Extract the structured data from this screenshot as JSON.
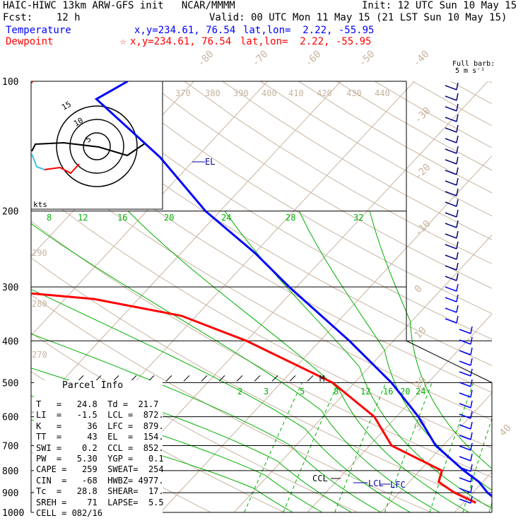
{
  "header": {
    "model": "HAIC-HIWC 13km ARW-GFS init   NCAR/MMMM",
    "init": "Init: 12 UTC Sun 10 May 15",
    "fcst": "Fcst:    12 h",
    "valid": "Valid: 00 UTC Mon 11 May 15 (21 LST Sun 10 May 15)",
    "temperature_label": "Temperature",
    "dewpoint_label": "Dewpoint",
    "temp_xy": "x,y=234.61, 76.54",
    "dew_xy": "x,y=234.61, 76.54",
    "temp_latlon": "lat,lon=  2.22, -55.95",
    "dew_latlon": "lat,lon=  2.22, -55.95",
    "dew_marker": "☆",
    "barb_legend": "Full barb:",
    "barb_units": "5 m s⁻¹"
  },
  "colors": {
    "temperature": "#0000ff",
    "dewpoint": "#ff0000",
    "isotherm": "#c8b4a0",
    "mixing": "#00b000",
    "isobar": "#000000"
  },
  "chart_data": {
    "type": "line",
    "title": "",
    "pressure_levels": [
      100,
      200,
      300,
      400,
      500,
      600,
      700,
      800,
      900,
      1000
    ],
    "isotherm_labels": [
      "-80",
      "-70",
      "-60",
      "-50",
      "-40",
      "-30",
      "-20",
      "-10",
      "0",
      "10",
      "20",
      "30",
      "40"
    ],
    "dry_adiabat_labels": [
      "370",
      "380",
      "390",
      "400",
      "410",
      "420",
      "430",
      "440",
      "290",
      "280",
      "270"
    ],
    "moist_adiabat_labels": [
      "8",
      "12",
      "16",
      "20",
      "24",
      "28",
      "32"
    ],
    "mixing_ratio_labels": [
      "2",
      "3",
      "5",
      "8",
      "12",
      "16",
      "20",
      "24"
    ],
    "series": [
      {
        "name": "Temperature",
        "color": "#0000ff",
        "points": [
          [
            100,
            -79
          ],
          [
            110,
            -81
          ],
          [
            150,
            -65
          ],
          [
            200,
            -52
          ],
          [
            250,
            -40
          ],
          [
            300,
            -31
          ],
          [
            400,
            -16
          ],
          [
            500,
            -5
          ],
          [
            600,
            3
          ],
          [
            700,
            9
          ],
          [
            800,
            16
          ],
          [
            850,
            19.5
          ],
          [
            900,
            22
          ],
          [
            925,
            23.5
          ],
          [
            950,
            24.8
          ]
        ]
      },
      {
        "name": "Dewpoint",
        "color": "#ff0000",
        "points": [
          [
            100,
            -92
          ],
          [
            150,
            -90
          ],
          [
            200,
            -88
          ],
          [
            250,
            -93
          ],
          [
            280,
            -98
          ],
          [
            300,
            -76
          ],
          [
            320,
            -56
          ],
          [
            350,
            -42
          ],
          [
            400,
            -30
          ],
          [
            500,
            -13
          ],
          [
            600,
            -3
          ],
          [
            700,
            3
          ],
          [
            800,
            13
          ],
          [
            850,
            14
          ],
          [
            900,
            17.5
          ],
          [
            950,
            21.7
          ]
        ]
      }
    ],
    "annotations": [
      "EL",
      "M",
      "CCL",
      "LCL",
      "LFC"
    ],
    "hodograph": {
      "rings_kts": [
        5,
        10,
        15
      ],
      "ring_labels": [
        "5",
        "10",
        "15"
      ],
      "axis_label": "kts"
    }
  },
  "parcel": {
    "title": "Parcel Info",
    "rows": [
      "T   =   24.8  Td =  21.7",
      "LI  =   -1.5  LCL =  872.",
      "K   =     36  LFC =  879.",
      "TT  =     43  EL  =  154.",
      "SWI =    0.2  CCL =  852.",
      "PW  =   5.30  YGP =   0.1",
      "CAPE =   259  SWEAT=  254",
      "CIN  =   -68  HWBZ= 4977.",
      "Tc  =   28.8  SHEAR=  17.",
      "SREH =    71  LAPSE=  5.5",
      "CELL = 082/16"
    ]
  },
  "wind_barbs": {
    "levels_count": 40
  }
}
